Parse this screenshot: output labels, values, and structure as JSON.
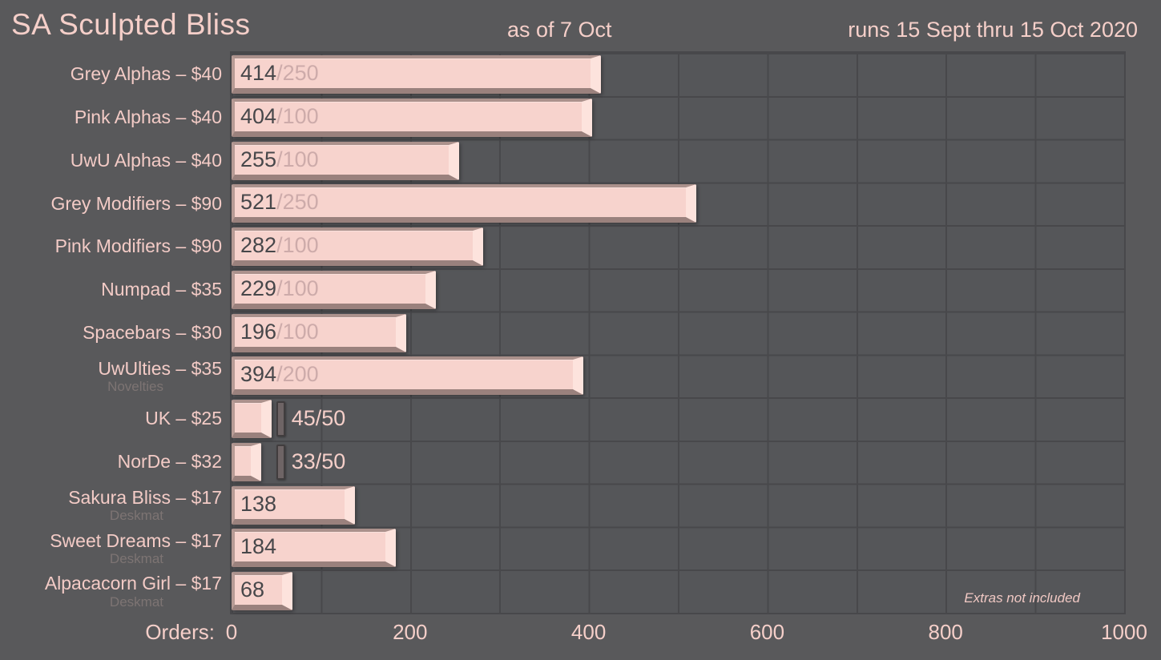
{
  "header": {
    "title": "SA Sculpted Bliss",
    "as_of": "as of 7 Oct",
    "runs": "runs 15 Sept thru 15 Oct 2020"
  },
  "axis": {
    "label": "Orders:",
    "ticks": [
      "0",
      "200",
      "400",
      "600",
      "800",
      "1000"
    ]
  },
  "note": "Extras not included",
  "chart_data": {
    "type": "bar",
    "orientation": "horizontal",
    "title": "SA Sculpted Bliss",
    "subtitle": "as of 7 Oct",
    "period": "runs 15 Sept thru 15 Oct 2020",
    "xlabel": "Orders:",
    "xlim": [
      0,
      1000
    ],
    "x_ticks": [
      0,
      200,
      400,
      600,
      800,
      1000
    ],
    "grid": "vertical minor gridlines every 100, horizontal line per row",
    "annotation": "Extras not included",
    "rows": [
      {
        "label": "Grey Alphas – $40",
        "sublabel": "",
        "sold": 414,
        "goal": 250,
        "sold_display": "414",
        "goal_display": "/250",
        "text_position": "inside"
      },
      {
        "label": "Pink Alphas – $40",
        "sublabel": "",
        "sold": 404,
        "goal": 100,
        "sold_display": "404",
        "goal_display": "/100",
        "text_position": "inside"
      },
      {
        "label": "UwU Alphas – $40",
        "sublabel": "",
        "sold": 255,
        "goal": 100,
        "sold_display": "255",
        "goal_display": "/100",
        "text_position": "inside"
      },
      {
        "label": "Grey Modifiers – $90",
        "sublabel": "",
        "sold": 521,
        "goal": 250,
        "sold_display": "521",
        "goal_display": "/250",
        "text_position": "inside"
      },
      {
        "label": "Pink Modifiers – $90",
        "sublabel": "",
        "sold": 282,
        "goal": 100,
        "sold_display": "282",
        "goal_display": "/100",
        "text_position": "inside"
      },
      {
        "label": "Numpad – $35",
        "sublabel": "",
        "sold": 229,
        "goal": 100,
        "sold_display": "229",
        "goal_display": "/100",
        "text_position": "inside"
      },
      {
        "label": "Spacebars – $30",
        "sublabel": "",
        "sold": 196,
        "goal": 100,
        "sold_display": "196",
        "goal_display": "/100",
        "text_position": "inside"
      },
      {
        "label": "UwUlties – $35",
        "sublabel": "Novelties",
        "sold": 394,
        "goal": 200,
        "sold_display": "394",
        "goal_display": "/200",
        "text_position": "inside"
      },
      {
        "label": "UK – $25",
        "sublabel": "",
        "sold": 45,
        "goal": 50,
        "sold_display": "45",
        "goal_display": "/50",
        "text_position": "outside",
        "marker_at": 50
      },
      {
        "label": "NorDe – $32",
        "sublabel": "",
        "sold": 33,
        "goal": 50,
        "sold_display": "33",
        "goal_display": "/50",
        "text_position": "outside",
        "marker_at": 50
      },
      {
        "label": "Sakura Bliss – $17",
        "sublabel": "Deskmat",
        "sold": 138,
        "goal": null,
        "sold_display": "138",
        "goal_display": "",
        "text_position": "inside"
      },
      {
        "label": "Sweet Dreams – $17",
        "sublabel": "Deskmat",
        "sold": 184,
        "goal": null,
        "sold_display": "184",
        "goal_display": "",
        "text_position": "inside"
      },
      {
        "label": "Alpacacorn Girl – $17",
        "sublabel": "Deskmat",
        "sold": 68,
        "goal": null,
        "sold_display": "68",
        "goal_display": "",
        "text_position": "inside"
      }
    ]
  },
  "colors": {
    "background": "#59595b",
    "plot_background": "#555659",
    "gridline": "#48484b",
    "bar_face": "#f7d3cd",
    "bar_bevel_top": "#ab918c",
    "bar_bevel_right_highlight": "#fde3dd",
    "bar_bevel_bottom": "#9a817d",
    "accent_pink": "#f5cfc9",
    "sublabel_muted": "#7d7473",
    "sold_text": "#47474a",
    "goal_text": "#cdabaa",
    "marker_face": "#6e6465",
    "marker_edge": "#413d3e"
  }
}
